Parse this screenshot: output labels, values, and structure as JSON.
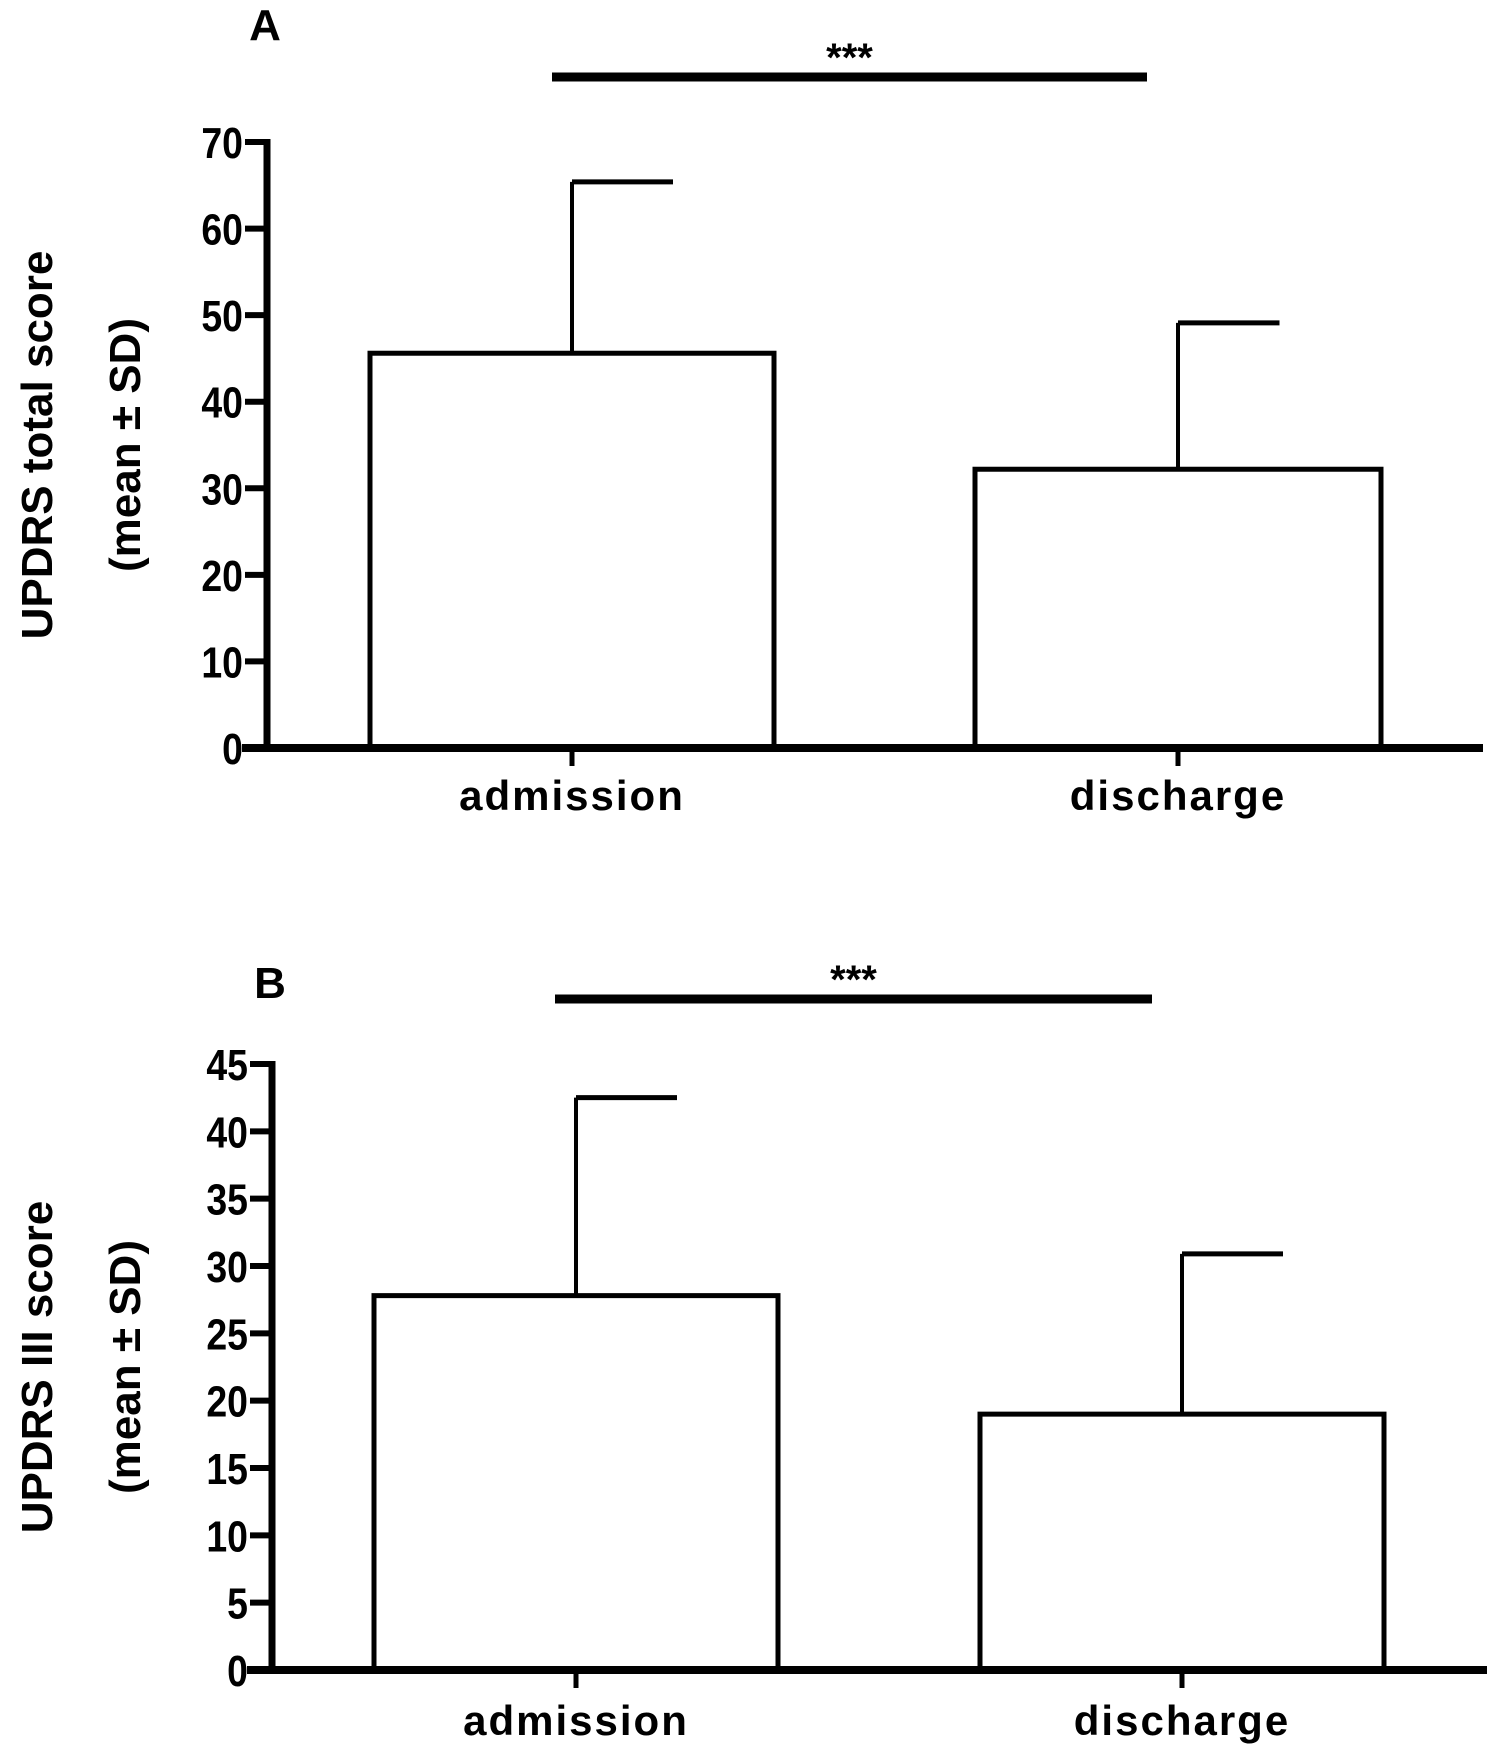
{
  "chart_data": [
    {
      "type": "bar",
      "panel_label": "A",
      "categories": [
        "admission",
        "discharge"
      ],
      "values": [
        45.6,
        32.2
      ],
      "error_upper": [
        65.4,
        49.1
      ],
      "ylabel_line1": "UPDRS total score",
      "ylabel_line2": "(mean ± SD)",
      "ylim": [
        0,
        70
      ],
      "yticks": [
        "0",
        "10",
        "20",
        "30",
        "40",
        "50",
        "60",
        "70"
      ],
      "ytick_values": [
        0,
        10,
        20,
        30,
        40,
        50,
        60,
        70
      ],
      "significance": "***",
      "grid": false,
      "bar_fill": "#ffffff",
      "stroke": "#000000"
    },
    {
      "type": "bar",
      "panel_label": "B",
      "categories": [
        "admission",
        "discharge"
      ],
      "values": [
        27.8,
        19.0
      ],
      "error_upper": [
        42.5,
        30.9
      ],
      "ylabel_line1": "UPDRS III score",
      "ylabel_line2": "(mean ± SD)",
      "ylim": [
        0,
        45
      ],
      "yticks": [
        "0",
        "5",
        "10",
        "15",
        "20",
        "25",
        "30",
        "35",
        "40",
        "45"
      ],
      "ytick_values": [
        0,
        5,
        10,
        15,
        20,
        25,
        30,
        35,
        40,
        45
      ],
      "significance": "***",
      "grid": false,
      "bar_fill": "#ffffff",
      "stroke": "#000000"
    }
  ]
}
